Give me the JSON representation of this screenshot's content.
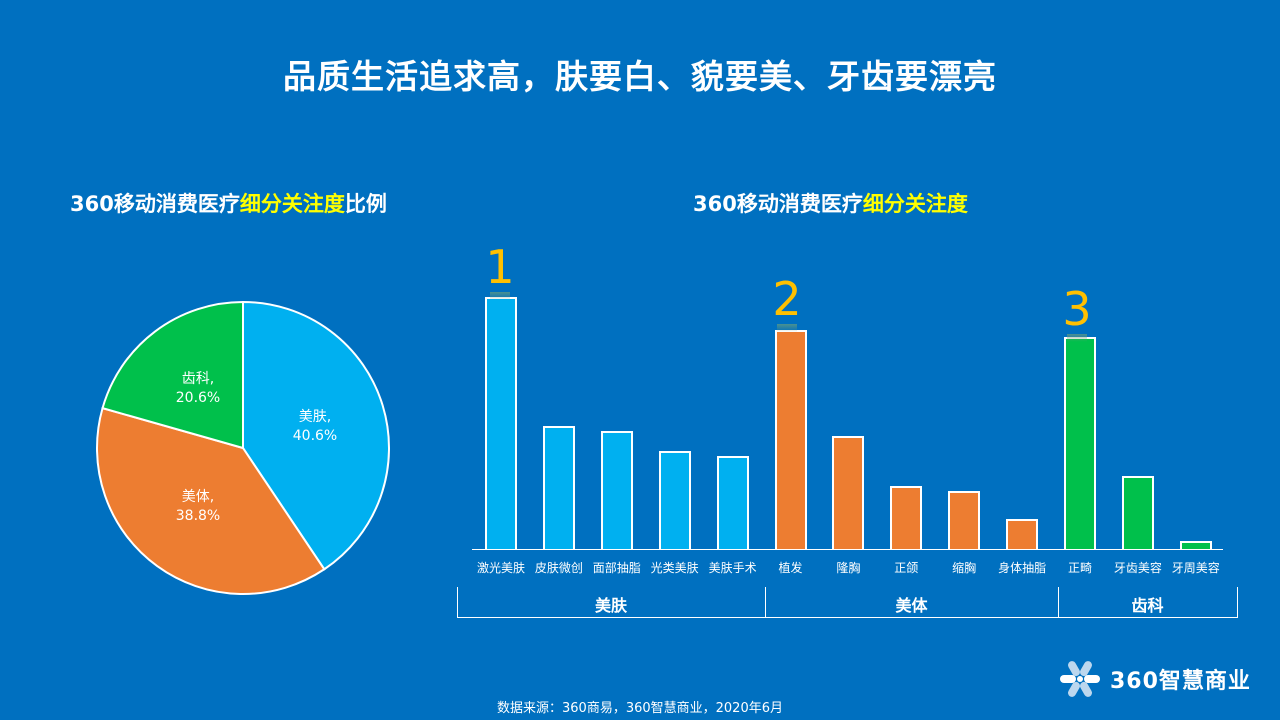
{
  "page": {
    "title": "品质生活追求高，肤要白、貌要美、牙齿要漂亮",
    "source": "数据来源：360商易，360智慧商业，2020年6月",
    "logo_text": "360智慧商业",
    "colors": {
      "background": "#0070c0",
      "beauty_skin": "#00b0f0",
      "beauty_body": "#ed7d31",
      "dental": "#00c04b",
      "highlight_text": "#ffff00",
      "rank_number": "#ffc000"
    }
  },
  "pie_title": {
    "prefix": "360移动消费医疗",
    "highlight": "细分关注度",
    "suffix": "比例"
  },
  "bar_title": {
    "prefix": "360移动消费医疗",
    "highlight": "细分关注度"
  },
  "pie_labels": {
    "skin": {
      "name": "美肤,",
      "value": "40.6%"
    },
    "body": {
      "name": "美体,",
      "value": "38.8%"
    },
    "dental": {
      "name": "齿科,",
      "value": "20.6%"
    }
  },
  "bar_groups": {
    "skin": "美肤",
    "body": "美体",
    "dental": "齿科"
  },
  "ranks": {
    "r1": "1",
    "r2": "2",
    "r3": "3"
  },
  "x_labels": [
    "激光美肤",
    "皮肤微创",
    "面部抽脂",
    "光类美肤",
    "美肤手术",
    "植发",
    "隆胸",
    "正颌",
    "缩胸",
    "身体抽脂",
    "正畸",
    "牙齿美容",
    "牙周美容"
  ],
  "chart_data": [
    {
      "type": "pie",
      "title": "360移动消费医疗细分关注度比例",
      "categories": [
        "美肤",
        "美体",
        "齿科"
      ],
      "values": [
        40.6,
        38.8,
        20.6
      ],
      "colors": [
        "#00b0f0",
        "#ed7d31",
        "#00c04b"
      ],
      "unit": "%"
    },
    {
      "type": "bar",
      "title": "360移动消费医疗细分关注度",
      "categories": [
        "激光美肤",
        "皮肤微创",
        "面部抽脂",
        "光类美肤",
        "美肤手术",
        "植发",
        "隆胸",
        "正颌",
        "缩胸",
        "身体抽脂",
        "正畸",
        "牙齿美容",
        "牙周美容"
      ],
      "groups": [
        {
          "name": "美肤",
          "members": [
            "激光美肤",
            "皮肤微创",
            "面部抽脂",
            "光类美肤",
            "美肤手术"
          ],
          "color": "#00b0f0"
        },
        {
          "name": "美体",
          "members": [
            "植发",
            "隆胸",
            "正颌",
            "缩胸",
            "身体抽脂"
          ],
          "color": "#ed7d31"
        },
        {
          "name": "齿科",
          "members": [
            "正畸",
            "牙齿美容",
            "牙周美容"
          ],
          "color": "#00c04b"
        }
      ],
      "values": [
        100,
        49,
        47,
        39,
        37,
        87,
        45,
        25,
        23,
        12,
        84,
        29,
        3
      ],
      "value_note": "relative bar heights (no axis shown), top bar = 100",
      "annotations": [
        {
          "category": "激光美肤",
          "text": "1"
        },
        {
          "category": "植发",
          "text": "2"
        },
        {
          "category": "正畸",
          "text": "3"
        }
      ],
      "xlabel": "",
      "ylabel": "",
      "grid": false,
      "legend": "none"
    }
  ]
}
